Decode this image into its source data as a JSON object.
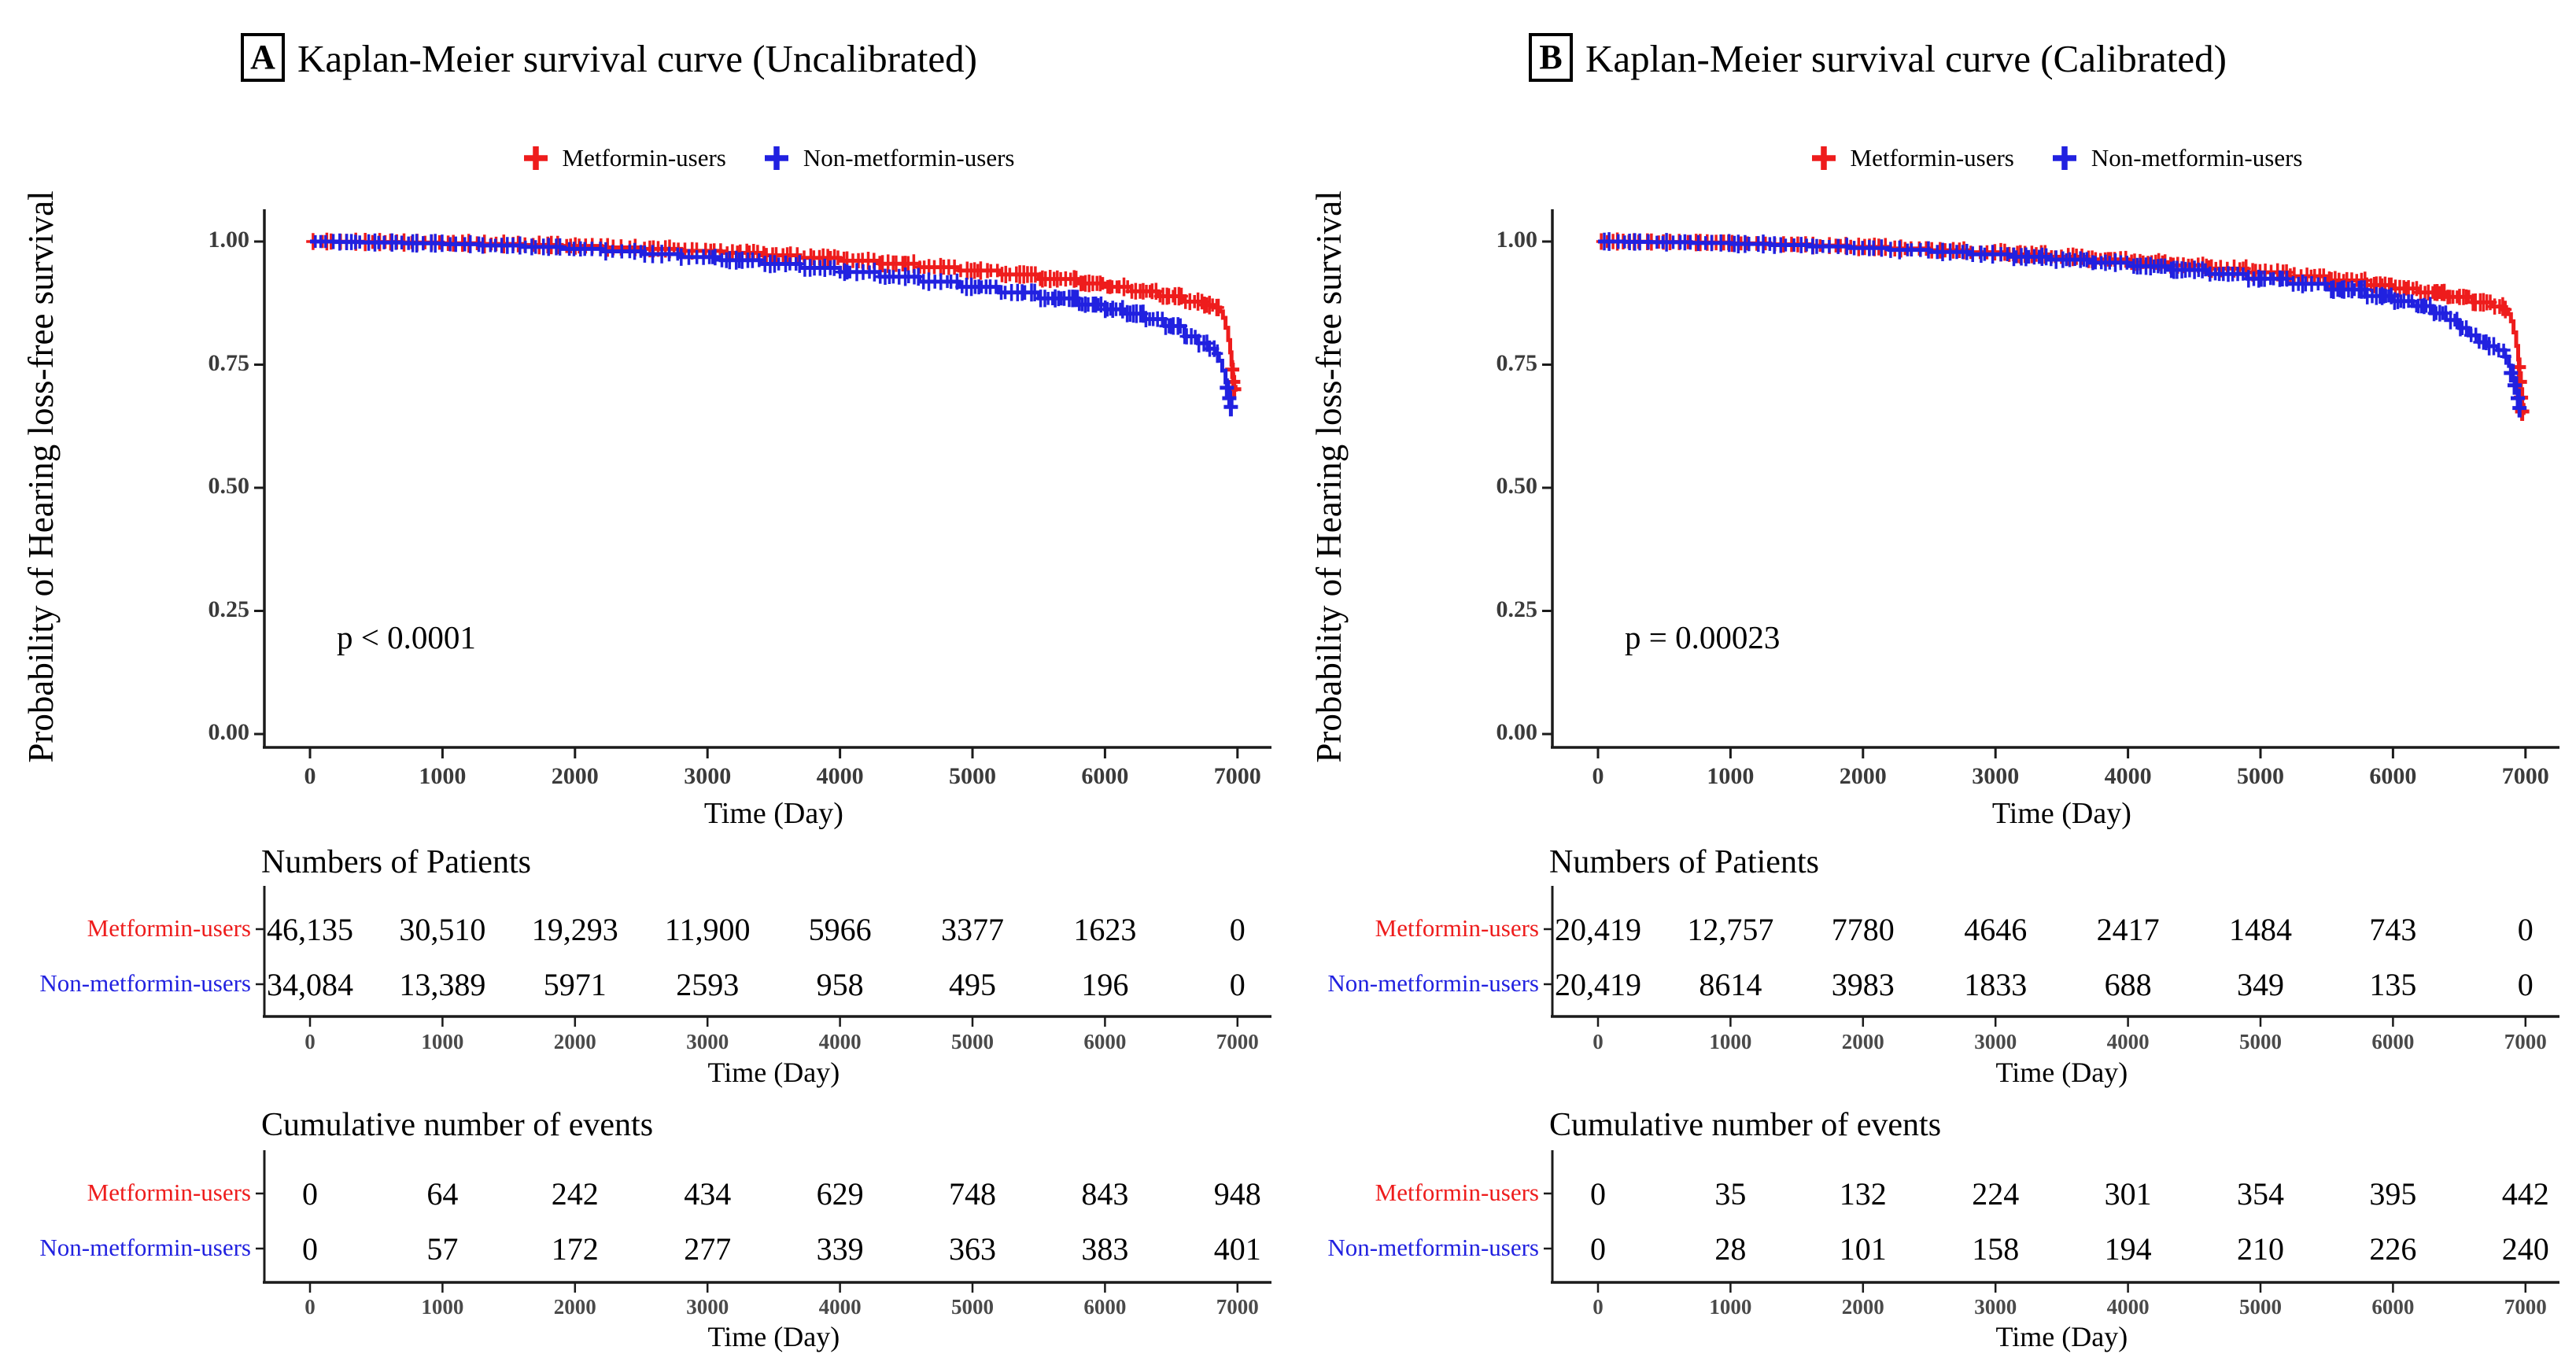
{
  "figure": {
    "ylabel": "Probability of Hearing loss-free survival",
    "xlabel": "Time (Day)",
    "panels": [
      {
        "letter": "A",
        "title": "Kaplan-Meier survival curve (Uncalibrated)",
        "p_value": "p < 0.0001"
      },
      {
        "letter": "B",
        "title": "Kaplan-Meier survival curve (Calibrated)",
        "p_value": "p = 0.00023"
      }
    ],
    "legend": [
      {
        "name": "Metformin-users",
        "color": "#ee1c1c"
      },
      {
        "name": "Non-metformin-users",
        "color": "#2121e0"
      }
    ],
    "colors": {
      "red": "#ee1c1c",
      "blue": "#2121e0",
      "axis": "#1b1b1b",
      "tick_text": "#3b3b3b"
    }
  },
  "chart_data": [
    {
      "type": "line",
      "title": "Kaplan-Meier survival curve (Uncalibrated)",
      "xlabel": "Time (Day)",
      "ylabel": "Probability of Hearing loss-free survival",
      "xlim": [
        0,
        7000
      ],
      "ylim": [
        0.0,
        1.0
      ],
      "x_ticks": [
        "0",
        "1000",
        "2000",
        "3000",
        "4000",
        "5000",
        "6000",
        "7000"
      ],
      "y_tick_labels": [
        "1.00",
        "0.75",
        "0.50",
        "0.25",
        "0.00"
      ],
      "p_value": "p < 0.0001",
      "legend_position": "top",
      "grid": false,
      "series": [
        {
          "name": "Metformin-users",
          "color": "#ee1c1c",
          "points": [
            [
              0,
              1
            ],
            [
              200,
              0.9995
            ],
            [
              400,
              0.999
            ],
            [
              700,
              0.998
            ],
            [
              1000,
              0.9965
            ],
            [
              1300,
              0.995
            ],
            [
              1600,
              0.993
            ],
            [
              1900,
              0.991
            ],
            [
              2200,
              0.988
            ],
            [
              2500,
              0.985
            ],
            [
              2800,
              0.981
            ],
            [
              3100,
              0.977
            ],
            [
              3400,
              0.972
            ],
            [
              3700,
              0.967
            ],
            [
              4000,
              0.961
            ],
            [
              4300,
              0.955
            ],
            [
              4600,
              0.948
            ],
            [
              4900,
              0.941
            ],
            [
              5200,
              0.933
            ],
            [
              5500,
              0.924
            ],
            [
              5800,
              0.915
            ],
            [
              6000,
              0.908
            ],
            [
              6200,
              0.899
            ],
            [
              6400,
              0.889
            ],
            [
              6600,
              0.878
            ],
            [
              6750,
              0.871
            ],
            [
              6830,
              0.866
            ],
            [
              6870,
              0.858
            ],
            [
              6890,
              0.845
            ],
            [
              6910,
              0.825
            ],
            [
              6930,
              0.8
            ],
            [
              6945,
              0.775
            ],
            [
              6955,
              0.75
            ],
            [
              6965,
              0.725
            ],
            [
              6975,
              0.705
            ],
            [
              6985,
              0.695
            ]
          ],
          "tail_censors": [
            [
              6960,
              0.74
            ],
            [
              6968,
              0.715
            ],
            [
              6975,
              0.7
            ]
          ]
        },
        {
          "name": "Non-metformin-users",
          "color": "#2121e0",
          "points": [
            [
              0,
              1
            ],
            [
              200,
              0.999
            ],
            [
              400,
              0.998
            ],
            [
              700,
              0.9965
            ],
            [
              1000,
              0.9945
            ],
            [
              1300,
              0.992
            ],
            [
              1600,
              0.989
            ],
            [
              1900,
              0.985
            ],
            [
              2200,
              0.98
            ],
            [
              2500,
              0.9745
            ],
            [
              2800,
              0.9685
            ],
            [
              3100,
              0.962
            ],
            [
              3400,
              0.9545
            ],
            [
              3700,
              0.9465
            ],
            [
              4000,
              0.938
            ],
            [
              4300,
              0.9285
            ],
            [
              4600,
              0.9185
            ],
            [
              4900,
              0.908
            ],
            [
              5200,
              0.8965
            ],
            [
              5500,
              0.8845
            ],
            [
              5800,
              0.872
            ],
            [
              6000,
              0.8625
            ],
            [
              6150,
              0.8535
            ],
            [
              6300,
              0.8425
            ],
            [
              6450,
              0.8285
            ],
            [
              6600,
              0.8075
            ],
            [
              6700,
              0.7935
            ],
            [
              6780,
              0.7825
            ],
            [
              6830,
              0.7725
            ],
            [
              6860,
              0.758
            ],
            [
              6885,
              0.738
            ],
            [
              6910,
              0.714
            ],
            [
              6930,
              0.693
            ],
            [
              6945,
              0.675
            ],
            [
              6955,
              0.662
            ]
          ],
          "tail_censors": [
            [
              6920,
              0.703
            ],
            [
              6938,
              0.682
            ],
            [
              6950,
              0.664
            ]
          ]
        }
      ],
      "risk_table": {
        "title": "Numbers of Patients",
        "time_points": [
          "0",
          "1000",
          "2000",
          "3000",
          "4000",
          "5000",
          "6000",
          "7000"
        ],
        "xlabel": "Time (Day)",
        "rows": [
          {
            "name": "Metformin-users",
            "color": "#ee1c1c",
            "values": [
              "46,135",
              "30,510",
              "19,293",
              "11,900",
              "5966",
              "3377",
              "1623",
              "0"
            ]
          },
          {
            "name": "Non-metformin-users",
            "color": "#2121e0",
            "values": [
              "34,084",
              "13,389",
              "5971",
              "2593",
              "958",
              "495",
              "196",
              "0"
            ]
          }
        ]
      },
      "events_table": {
        "title": "Cumulative number of events",
        "time_points": [
          "0",
          "1000",
          "2000",
          "3000",
          "4000",
          "5000",
          "6000",
          "7000"
        ],
        "xlabel": "Time (Day)",
        "rows": [
          {
            "name": "Metformin-users",
            "color": "#ee1c1c",
            "values": [
              "0",
              "64",
              "242",
              "434",
              "629",
              "748",
              "843",
              "948"
            ]
          },
          {
            "name": "Non-metformin-users",
            "color": "#2121e0",
            "values": [
              "0",
              "57",
              "172",
              "277",
              "339",
              "363",
              "383",
              "401"
            ]
          }
        ]
      }
    },
    {
      "type": "line",
      "title": "Kaplan-Meier survival curve (Calibrated)",
      "xlabel": "Time (Day)",
      "ylabel": "Probability of Hearing loss-free survival",
      "xlim": [
        0,
        7000
      ],
      "ylim": [
        0.0,
        1.0
      ],
      "x_ticks": [
        "0",
        "1000",
        "2000",
        "3000",
        "4000",
        "5000",
        "6000",
        "7000"
      ],
      "y_tick_labels": [
        "1.00",
        "0.75",
        "0.50",
        "0.25",
        "0.00"
      ],
      "p_value": "p = 0.00023",
      "legend_position": "top",
      "grid": false,
      "series": [
        {
          "name": "Metformin-users",
          "color": "#ee1c1c",
          "points": [
            [
              0,
              1
            ],
            [
              200,
              0.9995
            ],
            [
              400,
              0.999
            ],
            [
              700,
              0.998
            ],
            [
              1000,
              0.9962
            ],
            [
              1300,
              0.9942
            ],
            [
              1600,
              0.9918
            ],
            [
              1900,
              0.989
            ],
            [
              2200,
              0.9858
            ],
            [
              2500,
              0.9822
            ],
            [
              2800,
              0.9782
            ],
            [
              3100,
              0.9738
            ],
            [
              3400,
              0.969
            ],
            [
              3700,
              0.9638
            ],
            [
              4000,
              0.958
            ],
            [
              4300,
              0.9518
            ],
            [
              4600,
              0.945
            ],
            [
              4900,
              0.9375
            ],
            [
              5200,
              0.9295
            ],
            [
              5500,
              0.921
            ],
            [
              5800,
              0.9115
            ],
            [
              6000,
              0.9045
            ],
            [
              6200,
              0.8965
            ],
            [
              6400,
              0.8875
            ],
            [
              6600,
              0.8765
            ],
            [
              6750,
              0.868
            ],
            [
              6830,
              0.862
            ],
            [
              6870,
              0.8525
            ],
            [
              6890,
              0.838
            ],
            [
              6910,
              0.8155
            ],
            [
              6930,
              0.788
            ],
            [
              6945,
              0.7605
            ],
            [
              6955,
              0.7325
            ],
            [
              6965,
              0.7
            ],
            [
              6975,
              0.668
            ],
            [
              6985,
              0.648
            ]
          ],
          "tail_censors": [
            [
              6950,
              0.745
            ],
            [
              6958,
              0.715
            ],
            [
              6966,
              0.683
            ],
            [
              6975,
              0.655
            ]
          ]
        },
        {
          "name": "Non-metformin-users",
          "color": "#2121e0",
          "points": [
            [
              0,
              1
            ],
            [
              200,
              0.9992
            ],
            [
              400,
              0.9985
            ],
            [
              700,
              0.997
            ],
            [
              1000,
              0.995
            ],
            [
              1300,
              0.9928
            ],
            [
              1600,
              0.99
            ],
            [
              1900,
              0.9868
            ],
            [
              2200,
              0.983
            ],
            [
              2500,
              0.9788
            ],
            [
              2800,
              0.9742
            ],
            [
              3100,
              0.969
            ],
            [
              3400,
              0.9632
            ],
            [
              3700,
              0.957
            ],
            [
              4000,
              0.95
            ],
            [
              4300,
              0.9425
            ],
            [
              4600,
              0.934
            ],
            [
              4900,
              0.9245
            ],
            [
              5200,
              0.914
            ],
            [
              5500,
              0.9025
            ],
            [
              5800,
              0.8895
            ],
            [
              6000,
              0.879
            ],
            [
              6150,
              0.869
            ],
            [
              6300,
              0.8545
            ],
            [
              6400,
              0.8405
            ],
            [
              6500,
              0.8245
            ],
            [
              6570,
              0.8095
            ],
            [
              6650,
              0.7955
            ],
            [
              6720,
              0.7875
            ],
            [
              6790,
              0.7795
            ],
            [
              6840,
              0.7665
            ],
            [
              6875,
              0.7475
            ],
            [
              6905,
              0.7225
            ],
            [
              6930,
              0.697
            ],
            [
              6950,
              0.673
            ],
            [
              6960,
              0.658
            ]
          ],
          "tail_censors": [
            [
              6890,
              0.733
            ],
            [
              6918,
              0.708
            ],
            [
              6942,
              0.682
            ],
            [
              6955,
              0.662
            ]
          ]
        }
      ],
      "risk_table": {
        "title": "Numbers of Patients",
        "time_points": [
          "0",
          "1000",
          "2000",
          "3000",
          "4000",
          "5000",
          "6000",
          "7000"
        ],
        "xlabel": "Time (Day)",
        "rows": [
          {
            "name": "Metformin-users",
            "color": "#ee1c1c",
            "values": [
              "20,419",
              "12,757",
              "7780",
              "4646",
              "2417",
              "1484",
              "743",
              "0"
            ]
          },
          {
            "name": "Non-metformin-users",
            "color": "#2121e0",
            "values": [
              "20,419",
              "8614",
              "3983",
              "1833",
              "688",
              "349",
              "135",
              "0"
            ]
          }
        ]
      },
      "events_table": {
        "title": "Cumulative number of events",
        "time_points": [
          "0",
          "1000",
          "2000",
          "3000",
          "4000",
          "5000",
          "6000",
          "7000"
        ],
        "xlabel": "Time (Day)",
        "rows": [
          {
            "name": "Metformin-users",
            "color": "#ee1c1c",
            "values": [
              "0",
              "35",
              "132",
              "224",
              "301",
              "354",
              "395",
              "442"
            ]
          },
          {
            "name": "Non-metformin-users",
            "color": "#2121e0",
            "values": [
              "0",
              "28",
              "101",
              "158",
              "194",
              "210",
              "226",
              "240"
            ]
          }
        ]
      }
    }
  ]
}
